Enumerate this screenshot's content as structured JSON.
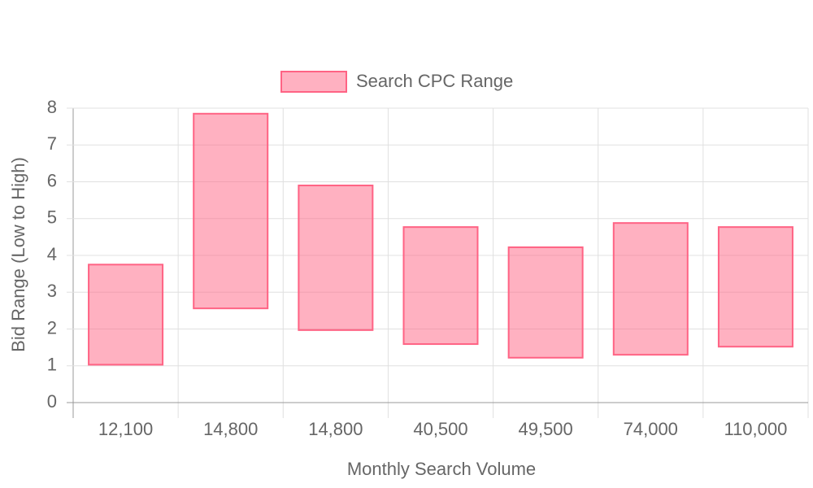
{
  "chart_data": {
    "type": "floating-bar",
    "x_label": "Monthly Search Volume",
    "y_label": "Bid Range (Low to High)",
    "categories": [
      "12,100",
      "14,800",
      "14,800",
      "40,500",
      "49,500",
      "74,000",
      "110,000"
    ],
    "series": [
      {
        "name": "Search CPC Range",
        "color": "#ff6384",
        "values": [
          [
            1.03,
            3.75
          ],
          [
            2.56,
            7.85
          ],
          [
            1.97,
            5.9
          ],
          [
            1.59,
            4.77
          ],
          [
            1.22,
            4.22
          ],
          [
            1.3,
            4.88
          ],
          [
            1.52,
            4.77
          ]
        ]
      }
    ],
    "ylim": [
      0,
      8
    ],
    "yticks": [
      0,
      1,
      2,
      3,
      4,
      5,
      6,
      7,
      8
    ],
    "grid": true,
    "legend": "top"
  }
}
